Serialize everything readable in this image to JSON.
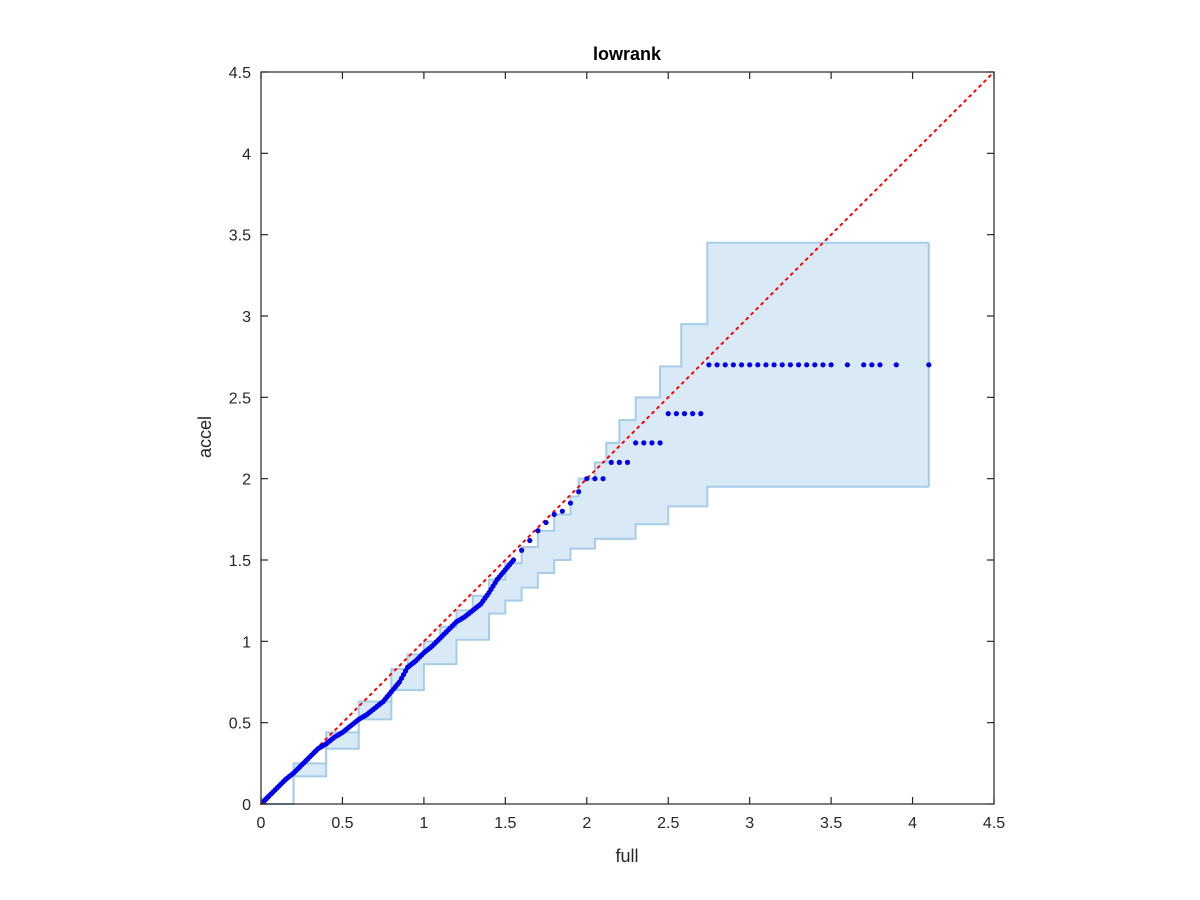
{
  "chart_data": {
    "type": "scatter",
    "title": "lowrank",
    "xlabel": "full",
    "ylabel": "accel",
    "xlim": [
      0,
      4.5
    ],
    "ylim": [
      0,
      4.5
    ],
    "xticks": [
      "0",
      "0.5",
      "1",
      "1.5",
      "2",
      "2.5",
      "3",
      "3.5",
      "4",
      "4.5"
    ],
    "yticks": [
      "0",
      "0.5",
      "1",
      "1.5",
      "2",
      "2.5",
      "3",
      "3.5",
      "4",
      "4.5"
    ],
    "grid": false,
    "reference_line": {
      "from": [
        0,
        0
      ],
      "to": [
        4.5,
        4.5
      ],
      "style": "dotted",
      "color": "#ff0000"
    },
    "band": {
      "color": "#a6cde8",
      "fill_color": "#d9e9f5",
      "x_end": 4.1,
      "upper": [
        [
          0,
          0
        ],
        [
          0.2,
          0.25
        ],
        [
          0.4,
          0.44
        ],
        [
          0.6,
          0.63
        ],
        [
          0.8,
          0.83
        ],
        [
          0.9,
          0.92
        ],
        [
          1.0,
          1.0
        ],
        [
          1.1,
          1.09
        ],
        [
          1.2,
          1.19
        ],
        [
          1.3,
          1.28
        ],
        [
          1.4,
          1.38
        ],
        [
          1.5,
          1.48
        ],
        [
          1.6,
          1.58
        ],
        [
          1.7,
          1.68
        ],
        [
          1.8,
          1.78
        ],
        [
          1.9,
          1.89
        ],
        [
          1.95,
          2.0
        ],
        [
          2.05,
          2.1
        ],
        [
          2.12,
          2.22
        ],
        [
          2.2,
          2.36
        ],
        [
          2.3,
          2.5
        ],
        [
          2.45,
          2.69
        ],
        [
          2.58,
          2.95
        ],
        [
          2.74,
          3.45
        ],
        [
          4.1,
          3.45
        ]
      ],
      "lower": [
        [
          0,
          0
        ],
        [
          0.2,
          0.17
        ],
        [
          0.4,
          0.34
        ],
        [
          0.6,
          0.52
        ],
        [
          0.8,
          0.7
        ],
        [
          1.0,
          0.86
        ],
        [
          1.2,
          1.01
        ],
        [
          1.4,
          1.17
        ],
        [
          1.5,
          1.25
        ],
        [
          1.6,
          1.33
        ],
        [
          1.7,
          1.42
        ],
        [
          1.8,
          1.5
        ],
        [
          1.9,
          1.57
        ],
        [
          2.05,
          1.63
        ],
        [
          2.3,
          1.72
        ],
        [
          2.5,
          1.83
        ],
        [
          2.74,
          1.95
        ],
        [
          4.1,
          1.95
        ]
      ]
    },
    "series": [
      {
        "color": "#0000ee",
        "points": [
          [
            0.02,
            0.02
          ],
          [
            0.05,
            0.05
          ],
          [
            0.1,
            0.1
          ],
          [
            0.15,
            0.15
          ],
          [
            0.2,
            0.19
          ],
          [
            0.25,
            0.24
          ],
          [
            0.3,
            0.29
          ],
          [
            0.35,
            0.34
          ],
          [
            0.4,
            0.37
          ],
          [
            0.45,
            0.41
          ],
          [
            0.5,
            0.44
          ],
          [
            0.55,
            0.48
          ],
          [
            0.6,
            0.52
          ],
          [
            0.65,
            0.55
          ],
          [
            0.7,
            0.59
          ],
          [
            0.75,
            0.63
          ],
          [
            0.8,
            0.69
          ],
          [
            0.85,
            0.75
          ],
          [
            0.9,
            0.84
          ],
          [
            0.95,
            0.88
          ],
          [
            1.0,
            0.93
          ],
          [
            1.05,
            0.97
          ],
          [
            1.1,
            1.02
          ],
          [
            1.15,
            1.07
          ],
          [
            1.2,
            1.12
          ],
          [
            1.25,
            1.15
          ],
          [
            1.3,
            1.19
          ],
          [
            1.35,
            1.23
          ],
          [
            1.4,
            1.3
          ],
          [
            1.45,
            1.38
          ],
          [
            1.5,
            1.44
          ],
          [
            1.55,
            1.5
          ],
          [
            1.6,
            1.56
          ],
          [
            1.65,
            1.62
          ],
          [
            1.7,
            1.68
          ],
          [
            1.75,
            1.73
          ],
          [
            1.8,
            1.78
          ],
          [
            1.85,
            1.8
          ],
          [
            1.9,
            1.85
          ],
          [
            1.95,
            1.92
          ],
          [
            2.0,
            2.0
          ],
          [
            2.05,
            2.0
          ],
          [
            2.1,
            2.0
          ],
          [
            2.15,
            2.1
          ],
          [
            2.2,
            2.1
          ],
          [
            2.25,
            2.1
          ],
          [
            2.3,
            2.22
          ],
          [
            2.35,
            2.22
          ],
          [
            2.4,
            2.22
          ],
          [
            2.45,
            2.22
          ],
          [
            2.5,
            2.4
          ],
          [
            2.55,
            2.4
          ],
          [
            2.6,
            2.4
          ],
          [
            2.65,
            2.4
          ],
          [
            2.7,
            2.4
          ],
          [
            2.75,
            2.7
          ],
          [
            2.8,
            2.7
          ],
          [
            2.85,
            2.7
          ],
          [
            2.9,
            2.7
          ],
          [
            2.95,
            2.7
          ],
          [
            3.0,
            2.7
          ],
          [
            3.05,
            2.7
          ],
          [
            3.1,
            2.7
          ],
          [
            3.15,
            2.7
          ],
          [
            3.2,
            2.7
          ],
          [
            3.25,
            2.7
          ],
          [
            3.3,
            2.7
          ],
          [
            3.35,
            2.7
          ],
          [
            3.4,
            2.7
          ],
          [
            3.45,
            2.7
          ],
          [
            3.5,
            2.7
          ],
          [
            3.6,
            2.7
          ],
          [
            3.7,
            2.7
          ],
          [
            3.75,
            2.7
          ],
          [
            3.8,
            2.7
          ],
          [
            3.9,
            2.7
          ],
          [
            4.1,
            2.7
          ]
        ]
      }
    ]
  }
}
